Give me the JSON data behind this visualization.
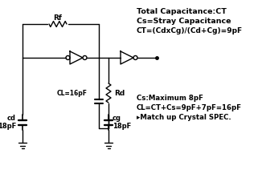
{
  "bg_color": "#ffffff",
  "line_color": "#000000",
  "title_text1": "Total Capacitance:CT",
  "title_text2": "Cs=Stray Capacitance",
  "title_text3": "CT=(CdxCg)/(Cd+Cg)=9pF",
  "note_text1": "Cs:Maximum 8pF",
  "note_text2": "CL=CT+Cs=9pF+7pF=16pF",
  "note_text3": "▸Match up Crystal SPEC.",
  "label_rf": "Rf",
  "label_rd": "Rd",
  "label_cl": "CL=16pF",
  "label_cd1": "cd",
  "label_cd2": "18pF",
  "label_cg1": "cg",
  "label_cg2": "18pF",
  "figsize": [
    3.26,
    2.37
  ],
  "dpi": 100
}
